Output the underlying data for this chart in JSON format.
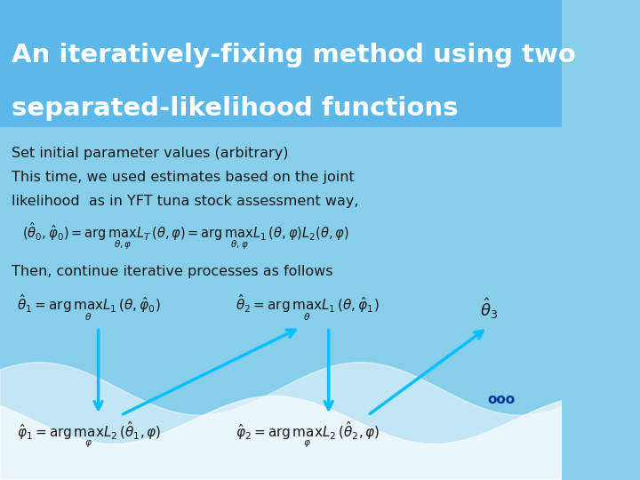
{
  "title_line1": "An iteratively-fixing method using two",
  "title_line2": "separated-likelihood functions",
  "title_bg_color": "#5BB8E8",
  "body_bg_color": "#87CEEB",
  "title_text_color": "#FFFFFF",
  "body_text_color": "#1a1a1a",
  "arrow_color": "#00BFFF",
  "dots_color": "#003399",
  "wave_color": "#FFFFFF",
  "subtitle1": "Set initial parameter values (arbitrary)",
  "subtitle2": "This time, we used estimates based on the joint",
  "subtitle3": "likelihood  as in YFT tuna stock assessment way,",
  "then_text": "Then, continue iterative processes as follows",
  "eq_joint": "$( \\hat{\\theta}_0, \\hat{\\varphi}_0 ) = \\arg\\max_{\\theta,\\varphi} L_T(\\theta,\\varphi) = \\arg\\max_{\\theta,\\varphi} L_1(\\theta,\\varphi)L_2(\\theta,\\varphi)$",
  "eq_theta1": "$\\hat{\\theta}_1 = \\arg\\max_{\\theta} L_1(\\theta,\\hat{\\varphi}_0)$",
  "eq_theta2": "$\\hat{\\theta}_2 = \\arg\\max_{\\theta} L_1(\\theta,\\hat{\\varphi}_1)$",
  "eq_theta3": "$\\hat{\\theta}_3$",
  "eq_phi1": "$\\hat{\\varphi}_1 = \\arg\\max_{\\varphi} L_2(\\hat{\\theta}_1,\\varphi)$",
  "eq_phi2": "$\\hat{\\varphi}_2 = \\arg\\max_{\\varphi} L_2(\\hat{\\theta}_2,\\varphi)$",
  "dots_text": "ooo"
}
